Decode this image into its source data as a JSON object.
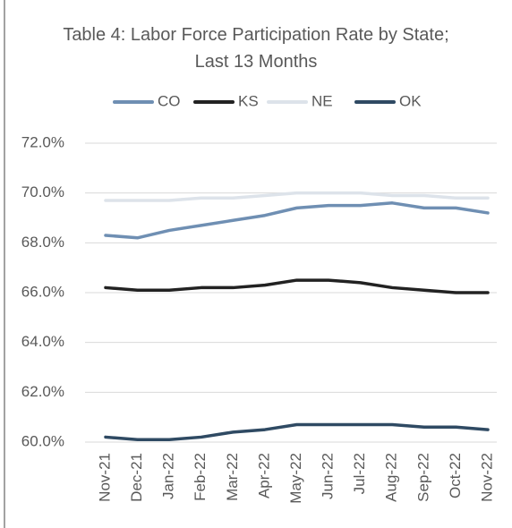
{
  "chart_data": {
    "type": "line",
    "title": "Table 4: Labor Force Participation Rate by State; Last 13 Months",
    "categories": [
      "Nov-21",
      "Dec-21",
      "Jan-22",
      "Feb-22",
      "Mar-22",
      "Apr-22",
      "May-22",
      "Jun-22",
      "Jul-22",
      "Aug-22",
      "Sep-22",
      "Oct-22",
      "Nov-22"
    ],
    "series": [
      {
        "name": "CO",
        "color": "#6f8fb3",
        "values": [
          68.3,
          68.2,
          68.5,
          68.7,
          68.9,
          69.1,
          69.4,
          69.5,
          69.5,
          69.6,
          69.4,
          69.4,
          69.2
        ]
      },
      {
        "name": "KS",
        "color": "#222222",
        "values": [
          66.2,
          66.1,
          66.1,
          66.2,
          66.2,
          66.3,
          66.5,
          66.5,
          66.4,
          66.2,
          66.1,
          66.0,
          66.0
        ]
      },
      {
        "name": "NE",
        "color": "#dde3ea",
        "values": [
          69.7,
          69.7,
          69.7,
          69.8,
          69.8,
          69.9,
          70.0,
          70.0,
          70.0,
          69.9,
          69.9,
          69.8,
          69.8
        ]
      },
      {
        "name": "OK",
        "color": "#2f4a63",
        "values": [
          60.2,
          60.1,
          60.1,
          60.2,
          60.4,
          60.5,
          60.7,
          60.7,
          60.7,
          60.7,
          60.6,
          60.6,
          60.5
        ]
      }
    ],
    "ylim": [
      60,
      72
    ],
    "yticks": [
      {
        "value": 60,
        "label": "60.0%"
      },
      {
        "value": 62,
        "label": "62.0%"
      },
      {
        "value": 64,
        "label": "64.0%"
      },
      {
        "value": 66,
        "label": "66.0%"
      },
      {
        "value": 68,
        "label": "68.0%"
      },
      {
        "value": 70,
        "label": "70.0%"
      },
      {
        "value": 72,
        "label": "72.0%"
      }
    ],
    "grid": true,
    "legend": "top"
  }
}
